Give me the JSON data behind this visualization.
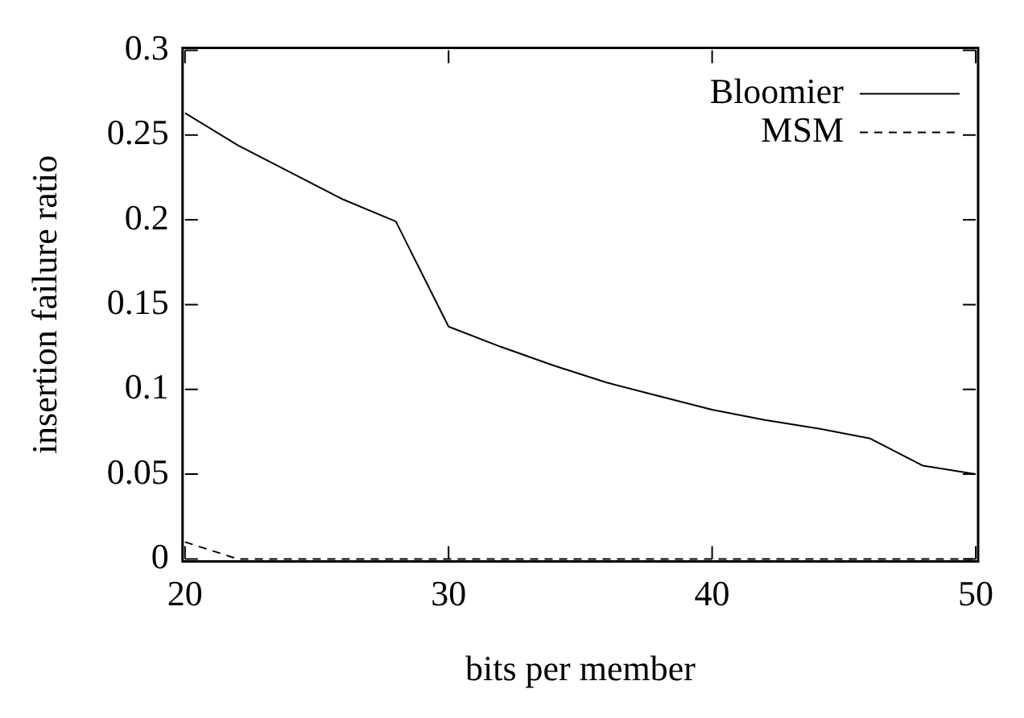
{
  "chart_data": {
    "type": "line",
    "xlabel": "bits per member",
    "ylabel": "insertion failure ratio",
    "x": [
      20,
      22,
      24,
      26,
      28,
      30,
      32,
      34,
      36,
      38,
      40,
      42,
      44,
      46,
      48,
      50
    ],
    "series": [
      {
        "name": "Bloomier",
        "color": "#000000",
        "line_style": "solid",
        "values": [
          0.263,
          0.244,
          0.228,
          0.212,
          0.199,
          0.137,
          0.125,
          0.114,
          0.104,
          0.096,
          0.088,
          0.082,
          0.077,
          0.071,
          0.055,
          0.05
        ]
      },
      {
        "name": "MSM",
        "color": "#000000",
        "line_style": "dashed",
        "values": [
          0.01,
          0.0,
          0,
          0,
          0,
          0,
          0,
          0,
          0,
          0,
          0,
          0,
          0,
          0,
          0,
          0
        ]
      }
    ],
    "xlim": [
      20,
      50
    ],
    "xticks": [
      20,
      30,
      40,
      50
    ],
    "ylim": [
      0,
      0.3
    ],
    "yticks": [
      0,
      0.05,
      0.1,
      0.15,
      0.2,
      0.25,
      0.3
    ],
    "grid": false,
    "legend": "top right",
    "marker": "none"
  }
}
